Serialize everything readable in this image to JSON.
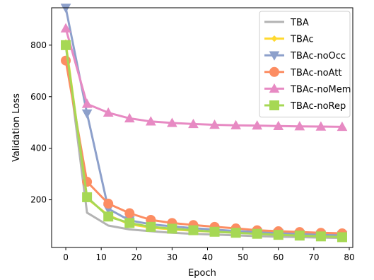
{
  "chart_data": {
    "type": "line",
    "xlabel": "Epoch",
    "ylabel": "Validation Loss",
    "xlim": [
      -4,
      81
    ],
    "ylim": [
      15,
      945
    ],
    "xticks": [
      0,
      10,
      20,
      30,
      40,
      50,
      60,
      70,
      80
    ],
    "yticks": [
      200,
      400,
      600,
      800
    ],
    "grid": false,
    "legend_position": "top-right",
    "series": [
      {
        "name": "TBA",
        "color": "#b3b3b3",
        "marker": "none",
        "x": [
          0,
          6,
          12,
          18,
          24,
          30,
          36,
          42,
          48,
          54,
          60,
          66,
          72,
          78
        ],
        "y": [
          800,
          150,
          100,
          85,
          78,
          72,
          68,
          65,
          62,
          59,
          57,
          55,
          53,
          52
        ]
      },
      {
        "name": "TBAc",
        "color": "#ffd92f",
        "marker": "diamond",
        "x": [
          0,
          6,
          12,
          18,
          24,
          30,
          36,
          42,
          48,
          54,
          60,
          66,
          72,
          78
        ],
        "y": [
          810,
          205,
          140,
          105,
          92,
          85,
          80,
          76,
          72,
          69,
          66,
          63,
          61,
          60
        ]
      },
      {
        "name": "TBAc-noOcc",
        "color": "#8da0cb",
        "marker": "triangle-down",
        "x": [
          0,
          6,
          12,
          18,
          24,
          30,
          36,
          42,
          48,
          54,
          60,
          66,
          72,
          78
        ],
        "y": [
          945,
          535,
          165,
          120,
          105,
          97,
          90,
          84,
          79,
          75,
          71,
          68,
          65,
          63
        ]
      },
      {
        "name": "TBAc-noAtt",
        "color": "#fc8d62",
        "marker": "circle",
        "x": [
          0,
          6,
          12,
          18,
          24,
          30,
          36,
          42,
          48,
          54,
          60,
          66,
          72,
          78
        ],
        "y": [
          740,
          270,
          185,
          148,
          122,
          110,
          102,
          95,
          89,
          82,
          78,
          75,
          72,
          70
        ]
      },
      {
        "name": "TBAc-noMem",
        "color": "#e78ac3",
        "marker": "triangle-up",
        "x": [
          0,
          6,
          12,
          18,
          24,
          30,
          36,
          42,
          48,
          54,
          60,
          66,
          72,
          78
        ],
        "y": [
          865,
          572,
          538,
          516,
          504,
          498,
          494,
          491,
          489,
          488,
          486,
          485,
          484,
          483
        ]
      },
      {
        "name": "TBAc-noRep",
        "color": "#a6d854",
        "marker": "square",
        "x": [
          0,
          6,
          12,
          18,
          24,
          30,
          36,
          42,
          48,
          54,
          60,
          66,
          72,
          78
        ],
        "y": [
          800,
          210,
          135,
          110,
          95,
          88,
          82,
          76,
          72,
          68,
          64,
          61,
          58,
          55
        ]
      }
    ]
  }
}
